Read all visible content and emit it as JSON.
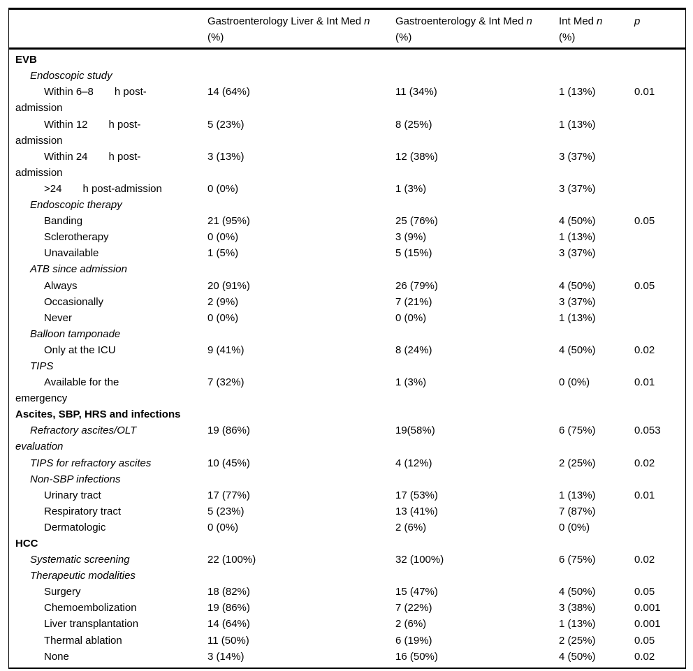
{
  "header": {
    "col1": {
      "title": "Gastroenterology Liver & Int Med",
      "var": "n",
      "unit": "(%)"
    },
    "col2": {
      "title": "Gastroenterology & Int Med",
      "var": "n",
      "unit": "(%)"
    },
    "col3": {
      "title": "Int Med",
      "var": "n",
      "unit": "(%)"
    },
    "col4": {
      "title": "",
      "var": "p",
      "unit": ""
    }
  },
  "rows": [
    {
      "type": "section",
      "label": "EVB",
      "values": [
        "",
        "",
        "",
        ""
      ]
    },
    {
      "type": "subsection",
      "label": "Endoscopic study",
      "values": [
        "",
        "",
        "",
        ""
      ]
    },
    {
      "type": "item",
      "label": "Within 6–8  h post-",
      "label2": "admission",
      "values": [
        "14 (64%)",
        "11 (34%)",
        "1 (13%)",
        "0.01"
      ]
    },
    {
      "type": "item",
      "label": "Within 12  h post-",
      "label2": "admission",
      "values": [
        "5 (23%)",
        "8 (25%)",
        "1 (13%)",
        ""
      ]
    },
    {
      "type": "item",
      "label": "Within 24  h post-",
      "label2": "admission",
      "values": [
        "3 (13%)",
        "12 (38%)",
        "3 (37%)",
        ""
      ]
    },
    {
      "type": "item",
      "label": ">24  h post-admission",
      "values": [
        "0 (0%)",
        "1 (3%)",
        "3 (37%)",
        ""
      ]
    },
    {
      "type": "subsection",
      "label": "Endoscopic therapy",
      "values": [
        "",
        "",
        "",
        ""
      ]
    },
    {
      "type": "item",
      "label": "Banding",
      "values": [
        "21 (95%)",
        "25 (76%)",
        "4 (50%)",
        "0.05"
      ]
    },
    {
      "type": "item",
      "label": "Sclerotherapy",
      "values": [
        "0 (0%)",
        "3 (9%)",
        "1 (13%)",
        ""
      ]
    },
    {
      "type": "item",
      "label": "Unavailable",
      "values": [
        "1 (5%)",
        "5 (15%)",
        "3 (37%)",
        ""
      ]
    },
    {
      "type": "subsection",
      "label": "ATB since admission",
      "values": [
        "",
        "",
        "",
        ""
      ]
    },
    {
      "type": "item",
      "label": "Always",
      "values": [
        "20 (91%)",
        "26 (79%)",
        "4 (50%)",
        "0.05"
      ]
    },
    {
      "type": "item",
      "label": "Occasionally",
      "values": [
        "2 (9%)",
        "7 (21%)",
        "3 (37%)",
        ""
      ]
    },
    {
      "type": "item",
      "label": "Never",
      "values": [
        "0 (0%)",
        "0 (0%)",
        "1 (13%)",
        ""
      ]
    },
    {
      "type": "subsection",
      "label": "Balloon tamponade",
      "values": [
        "",
        "",
        "",
        ""
      ]
    },
    {
      "type": "item",
      "label": "Only at the ICU",
      "values": [
        "9 (41%)",
        "8 (24%)",
        "4 (50%)",
        "0.02"
      ]
    },
    {
      "type": "subsection",
      "label": "TIPS",
      "values": [
        "",
        "",
        "",
        ""
      ]
    },
    {
      "type": "item",
      "label": "Available for the",
      "label2": "emergency",
      "values": [
        "7 (32%)",
        "1 (3%)",
        "0 (0%)",
        "0.01"
      ]
    },
    {
      "type": "section",
      "label": "Ascites, SBP, HRS and infections",
      "values": [
        "",
        "",
        "",
        ""
      ]
    },
    {
      "type": "subsection",
      "label": "Refractory ascites/OLT",
      "label2": "evaluation",
      "values": [
        "19 (86%)",
        "19(58%)",
        "6 (75%)",
        "0.053"
      ]
    },
    {
      "type": "subsection",
      "label": "TIPS for refractory ascites",
      "values": [
        "10 (45%)",
        "4 (12%)",
        "2 (25%)",
        "0.02"
      ]
    },
    {
      "type": "subsection",
      "label": "Non-SBP infections",
      "values": [
        "",
        "",
        "",
        ""
      ]
    },
    {
      "type": "item",
      "label": "Urinary tract",
      "values": [
        "17 (77%)",
        "17 (53%)",
        "1 (13%)",
        "0.01"
      ]
    },
    {
      "type": "item",
      "label": "Respiratory tract",
      "values": [
        "5 (23%)",
        "13 (41%)",
        "7 (87%)",
        ""
      ]
    },
    {
      "type": "item",
      "label": "Dermatologic",
      "values": [
        "0 (0%)",
        "2 (6%)",
        "0 (0%)",
        ""
      ]
    },
    {
      "type": "section",
      "label": "HCC",
      "values": [
        "",
        "",
        "",
        ""
      ]
    },
    {
      "type": "subsection",
      "label": "Systematic screening",
      "values": [
        "22 (100%)",
        "32 (100%)",
        "6 (75%)",
        "0.02"
      ]
    },
    {
      "type": "subsection",
      "label": "Therapeutic modalities",
      "values": [
        "",
        "",
        "",
        ""
      ]
    },
    {
      "type": "item",
      "label": "Surgery",
      "values": [
        "18 (82%)",
        "15 (47%)",
        "4 (50%)",
        "0.05"
      ]
    },
    {
      "type": "item",
      "label": "Chemoembolization",
      "values": [
        "19 (86%)",
        "7 (22%)",
        "3 (38%)",
        "0.001"
      ]
    },
    {
      "type": "item",
      "label": "Liver transplantation",
      "values": [
        "14 (64%)",
        "2 (6%)",
        "1 (13%)",
        "0.001"
      ]
    },
    {
      "type": "item",
      "label": "Thermal ablation",
      "values": [
        "11 (50%)",
        "6 (19%)",
        "2 (25%)",
        "0.05"
      ]
    },
    {
      "type": "item",
      "label": "None",
      "values": [
        "3 (14%)",
        "16 (50%)",
        "4 (50%)",
        "0.02"
      ]
    }
  ]
}
